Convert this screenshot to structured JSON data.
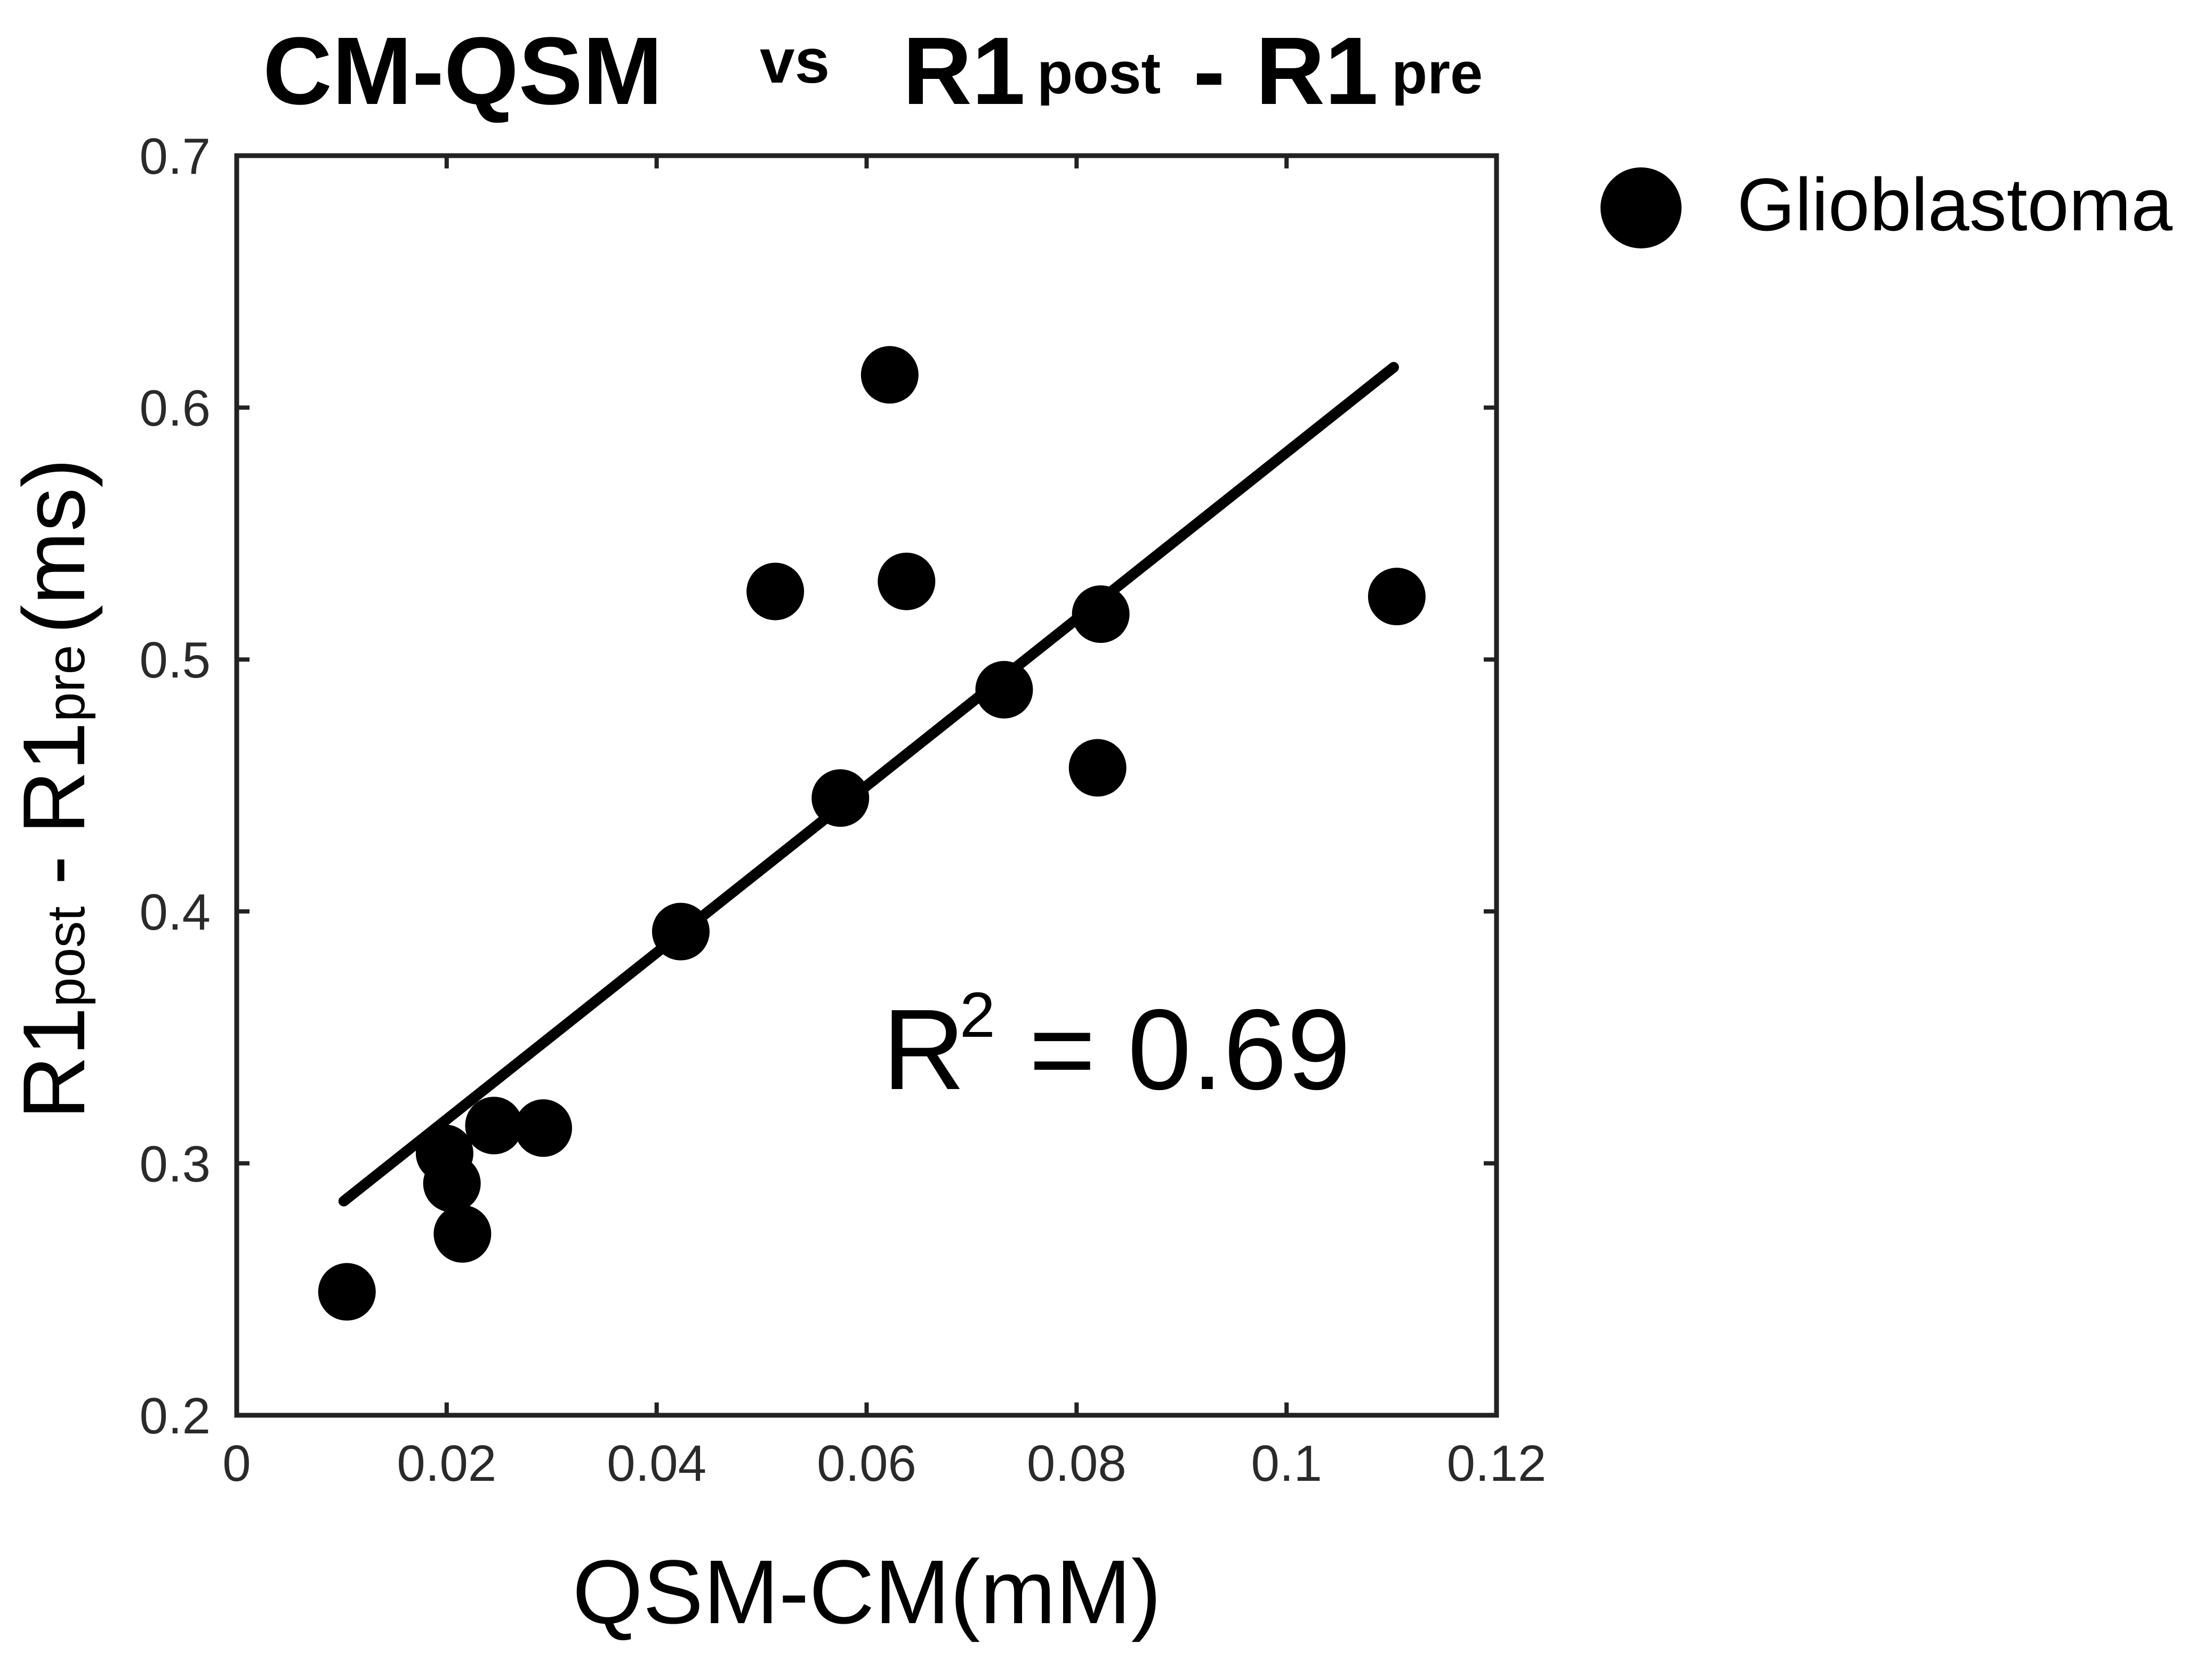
{
  "chart_data": {
    "type": "scatter",
    "title": {
      "part1": "CM-QSM",
      "vs": "vs",
      "r1": "R1",
      "post": "post",
      "dash": "-",
      "r2": "R1",
      "pre": "pre"
    },
    "xlabel": "QSM-CM(mM)",
    "ylabel": {
      "r1": "R1",
      "post": "post",
      "dash": "-",
      "r2": "R1",
      "pre": "pre",
      "unit": "(ms)"
    },
    "xlim": [
      0,
      0.12
    ],
    "ylim": [
      0.2,
      0.7
    ],
    "xticks": [
      "0",
      "0.02",
      "0.04",
      "0.06",
      "0.08",
      "0.1",
      "0.12"
    ],
    "xtick_values": [
      0,
      0.02,
      0.04,
      0.06,
      0.08,
      0.1,
      0.12
    ],
    "yticks": [
      "0.2",
      "0.3",
      "0.4",
      "0.5",
      "0.6",
      "0.7"
    ],
    "ytick_values": [
      0.2,
      0.3,
      0.4,
      0.5,
      0.6,
      0.7
    ],
    "grid": false,
    "legend_position": "top-right, outside plot",
    "series": [
      {
        "name": "Glioblastoma",
        "color": "#000000",
        "marker": "filled-circle",
        "points": [
          {
            "x": 0.0105,
            "y": 0.249
          },
          {
            "x": 0.0198,
            "y": 0.304
          },
          {
            "x": 0.0205,
            "y": 0.292
          },
          {
            "x": 0.0215,
            "y": 0.272
          },
          {
            "x": 0.0245,
            "y": 0.315
          },
          {
            "x": 0.0292,
            "y": 0.314
          },
          {
            "x": 0.0423,
            "y": 0.392
          },
          {
            "x": 0.0513,
            "y": 0.527
          },
          {
            "x": 0.0575,
            "y": 0.445
          },
          {
            "x": 0.0622,
            "y": 0.613
          },
          {
            "x": 0.0638,
            "y": 0.531
          },
          {
            "x": 0.0731,
            "y": 0.488
          },
          {
            "x": 0.082,
            "y": 0.457
          },
          {
            "x": 0.0823,
            "y": 0.518
          },
          {
            "x": 0.1105,
            "y": 0.525
          }
        ]
      }
    ],
    "fit_line": {
      "x": [
        0.0102,
        0.1102
      ],
      "y": [
        0.285,
        0.616
      ],
      "color": "#000000"
    },
    "annotation": {
      "r": "R",
      "sup": "2",
      "rest": " = 0.69"
    }
  }
}
